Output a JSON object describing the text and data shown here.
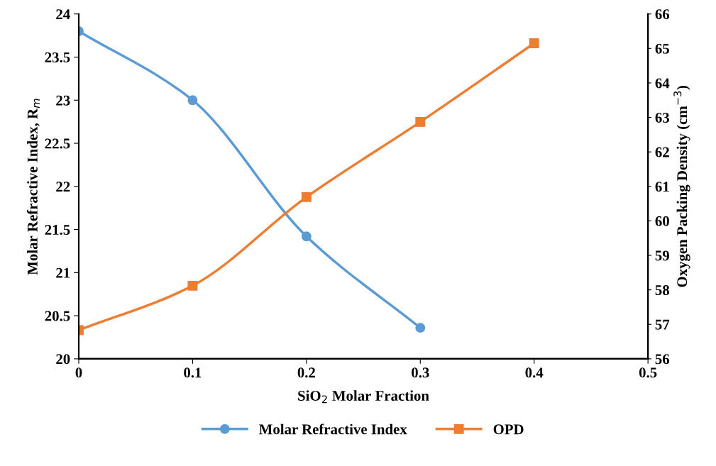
{
  "chart_data": {
    "type": "line",
    "xlabel": "SiO$_{2}$ Molar Fraction",
    "ylabel": "Molar Refractive Index, R$_{m}$",
    "y2label": "Oxygen Packing Density (cm$^{−3}$)",
    "series": [
      {
        "name": "Molar Refractive Index",
        "color": "#5b9bd5",
        "marker": "circle",
        "x": [
          0,
          0.1,
          0.2,
          0.3
        ],
        "values": [
          23.8,
          23.0,
          21.42,
          20.36
        ]
      },
      {
        "name": "OPD",
        "color": "#ed7d31",
        "marker": "square",
        "axis": "y2",
        "x": [
          0,
          0.1,
          0.2,
          0.3,
          0.4
        ],
        "values": [
          56.83,
          58.12,
          60.69,
          62.87,
          65.15
        ]
      }
    ],
    "xlim": [
      0,
      0.5
    ],
    "xticks": [
      0,
      0.1,
      0.2,
      0.3,
      0.4,
      0.5
    ],
    "ylim": [
      20,
      24
    ],
    "yticks": [
      20,
      20.5,
      21,
      21.5,
      22,
      22.5,
      23,
      23.5,
      24
    ],
    "y2lim": [
      56,
      66
    ],
    "y2ticks": [
      56,
      57,
      58,
      59,
      60,
      61,
      62,
      63,
      64,
      65,
      66
    ],
    "grid": false,
    "legend": "bottom",
    "line_style": "solid"
  }
}
